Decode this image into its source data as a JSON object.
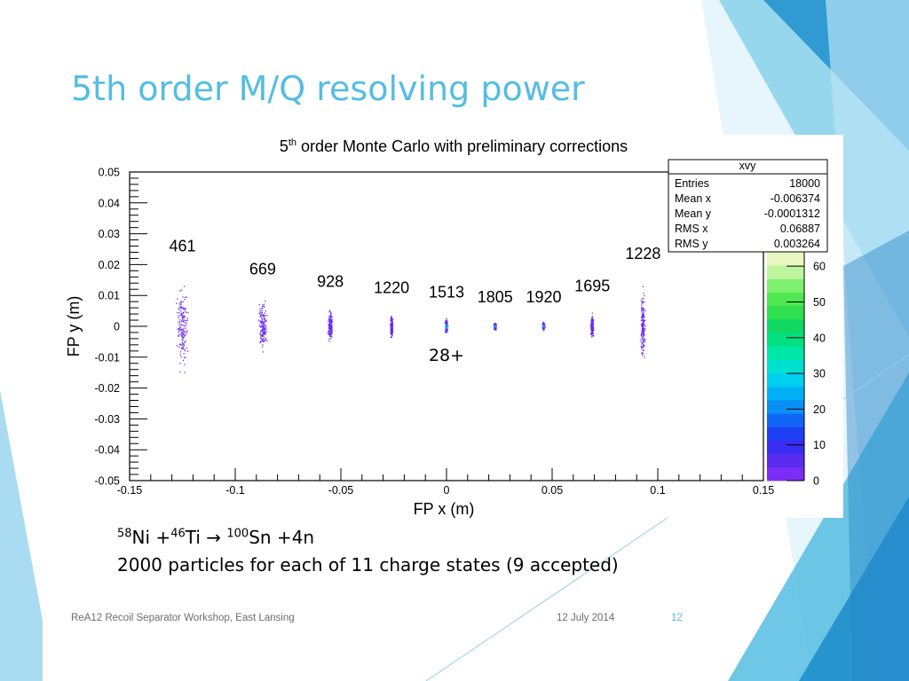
{
  "slide": {
    "title": "5th order M/Q resolving power",
    "reaction": {
      "a1": "58",
      "e1": "Ni +",
      "a2": "46",
      "e2": "Ti → ",
      "a3": "100",
      "e3": "Sn +4n"
    },
    "summary": "2000 particles for each of 11 charge states (9 accepted)",
    "footer": {
      "left": "ReA12 Recoil Separator Workshop, East Lansing",
      "date": "12 July 2014",
      "page": "12"
    },
    "colors": {
      "title": "#55bde2",
      "decor_dark": "#1f8fcc",
      "decor_light": "#a9dcf2"
    }
  },
  "chart_data": {
    "type": "scatter",
    "title_pre": "5",
    "title_sup": "th",
    "title_post": " order Monte Carlo with preliminary corrections",
    "xlabel": "FP x (m)",
    "ylabel": "FP y (m)",
    "xlim": [
      -0.15,
      0.15
    ],
    "ylim": [
      -0.05,
      0.05
    ],
    "xticks": [
      "-0.15",
      "-0.1",
      "-0.05",
      "0",
      "0.05",
      "0.1",
      "0.15"
    ],
    "yticks": [
      "0.05",
      "0.04",
      "0.03",
      "0.02",
      "0.01",
      "0",
      "-0.01",
      "-0.02",
      "-0.03",
      "-0.04",
      "-0.05"
    ],
    "clusters": [
      {
        "label": "461",
        "x": -0.125,
        "y_half_range": 0.018,
        "x_half_range": 0.0035
      },
      {
        "label": "669",
        "x": -0.087,
        "y_half_range": 0.0105,
        "x_half_range": 0.0025
      },
      {
        "label": "928",
        "x": -0.055,
        "y_half_range": 0.0065,
        "x_half_range": 0.0015
      },
      {
        "label": "1220",
        "x": -0.026,
        "y_half_range": 0.0045,
        "x_half_range": 0.001
      },
      {
        "label": "1513",
        "x": 0.0,
        "y_half_range": 0.003,
        "x_half_range": 0.0008
      },
      {
        "label": "1805",
        "x": 0.023,
        "y_half_range": 0.0015,
        "x_half_range": 0.0008
      },
      {
        "label": "1920",
        "x": 0.046,
        "y_half_range": 0.0015,
        "x_half_range": 0.0008
      },
      {
        "label": "1695",
        "x": 0.069,
        "y_half_range": 0.005,
        "x_half_range": 0.001
      },
      {
        "label": "1228",
        "x": 0.093,
        "y_half_range": 0.0155,
        "x_half_range": 0.0015
      }
    ],
    "annotation": "28+",
    "stats_box": {
      "name": "xvy",
      "rows": [
        [
          "Entries",
          "18000"
        ],
        [
          "Mean x",
          "-0.006374"
        ],
        [
          "Mean y",
          "-0.0001312"
        ],
        [
          "RMS x",
          "0.06887"
        ],
        [
          "RMS y",
          "0.003264"
        ]
      ]
    },
    "colorbar": {
      "ticks": [
        "0",
        "10",
        "20",
        "30",
        "40",
        "50",
        "60"
      ],
      "max": 64,
      "colors": [
        "#7b2cf5",
        "#5a2cf0",
        "#3a2cf0",
        "#1e40f5",
        "#1266f5",
        "#0a90f5",
        "#00b0f5",
        "#00d0f0",
        "#00e0d0",
        "#00e8a8",
        "#00e080",
        "#10d860",
        "#30e050",
        "#50e850",
        "#80f070",
        "#c0f5a0",
        "#e8f8c0"
      ]
    }
  }
}
